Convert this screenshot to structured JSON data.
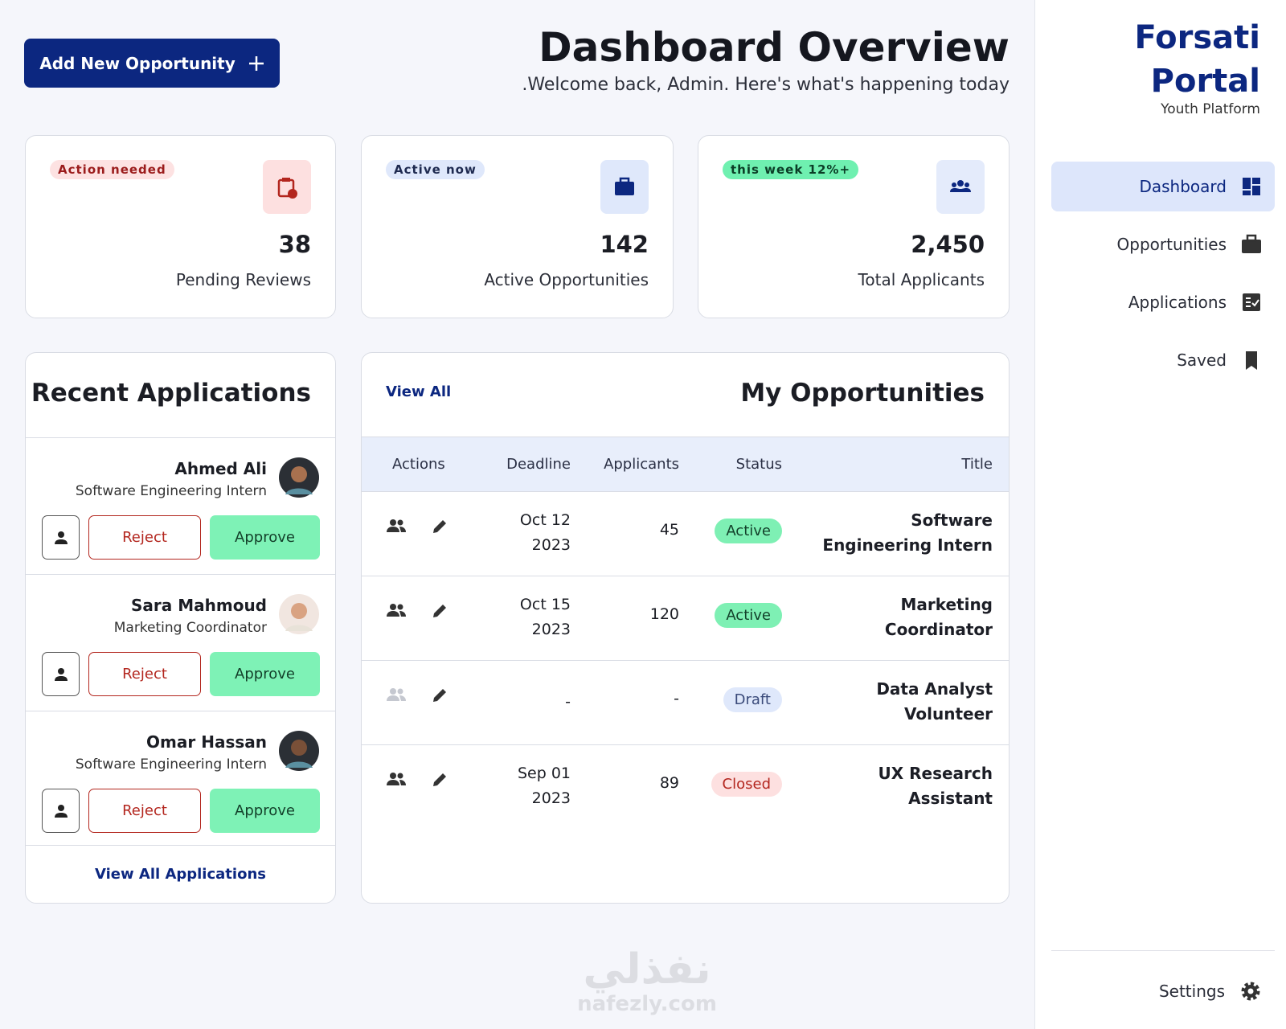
{
  "header": {
    "add_button": "Add New Opportunity",
    "title": "Dashboard Overview",
    "subtitle": ".Welcome back, Admin. Here's what's happening today"
  },
  "stats": [
    {
      "badge": "Action needed",
      "value": "38",
      "label": "Pending Reviews"
    },
    {
      "badge": "Active now",
      "value": "142",
      "label": "Active Opportunities"
    },
    {
      "badge": "this week 12%+",
      "value": "2,450",
      "label": "Total Applicants"
    }
  ],
  "recent_applications": {
    "title": "Recent Applications",
    "items": [
      {
        "name": "Ahmed Ali",
        "role": "Software Engineering Intern",
        "reject": "Reject",
        "approve": "Approve"
      },
      {
        "name": "Sara Mahmoud",
        "role": "Marketing Coordinator",
        "reject": "Reject",
        "approve": "Approve"
      },
      {
        "name": "Omar Hassan",
        "role": "Software Engineering Intern",
        "reject": "Reject",
        "approve": "Approve"
      }
    ],
    "footer": "View All Applications"
  },
  "opportunities": {
    "title": "My Opportunities",
    "view_all": "View All",
    "columns": [
      "Actions",
      "Deadline",
      "Applicants",
      "Status",
      "Title"
    ],
    "rows": [
      {
        "deadline": "Oct 12 2023",
        "applicants": "45",
        "status": "Active",
        "title": "Software Engineering Intern"
      },
      {
        "deadline": "Oct 15 2023",
        "applicants": "120",
        "status": "Active",
        "title": "Marketing Coordinator"
      },
      {
        "deadline": "-",
        "applicants": "-",
        "status": "Draft",
        "title": "Data Analyst Volunteer"
      },
      {
        "deadline": "Sep 01 2023",
        "applicants": "89",
        "status": "Closed",
        "title": "UX Research Assistant"
      }
    ]
  },
  "sidebar": {
    "brand": "Forsati Portal",
    "tagline": "Youth Platform",
    "nav": [
      "Dashboard",
      "Opportunities",
      "Applications",
      "Saved"
    ],
    "settings": "Settings"
  },
  "watermark": {
    "arabic": "نفذلي",
    "latin": "nafezly.com"
  }
}
